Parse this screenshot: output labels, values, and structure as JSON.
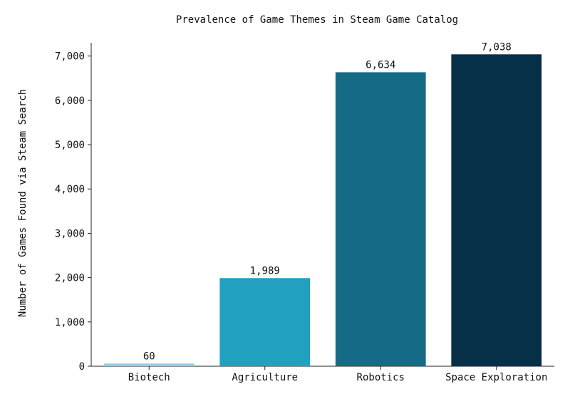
{
  "chart_data": {
    "type": "bar",
    "title": "Prevalence of Game Themes in Steam Game Catalog",
    "xlabel": "",
    "ylabel": "Number of Games Found via Steam Search",
    "categories": [
      "Biotech",
      "Agriculture",
      "Robotics",
      "Space Exploration"
    ],
    "values": [
      60,
      1989,
      6634,
      7038
    ],
    "data_labels": [
      "60",
      "1,989",
      "6,634",
      "7,038"
    ],
    "colors": [
      "#8ecfe6",
      "#22a0bf",
      "#156a86",
      "#063047"
    ],
    "ylim": [
      0,
      7300
    ],
    "yticks": [
      0,
      1000,
      2000,
      3000,
      4000,
      5000,
      6000,
      7000
    ],
    "ytick_labels": [
      "0",
      "1,000",
      "2,000",
      "3,000",
      "4,000",
      "5,000",
      "6,000",
      "7,000"
    ],
    "grid": false,
    "legend": "none"
  }
}
